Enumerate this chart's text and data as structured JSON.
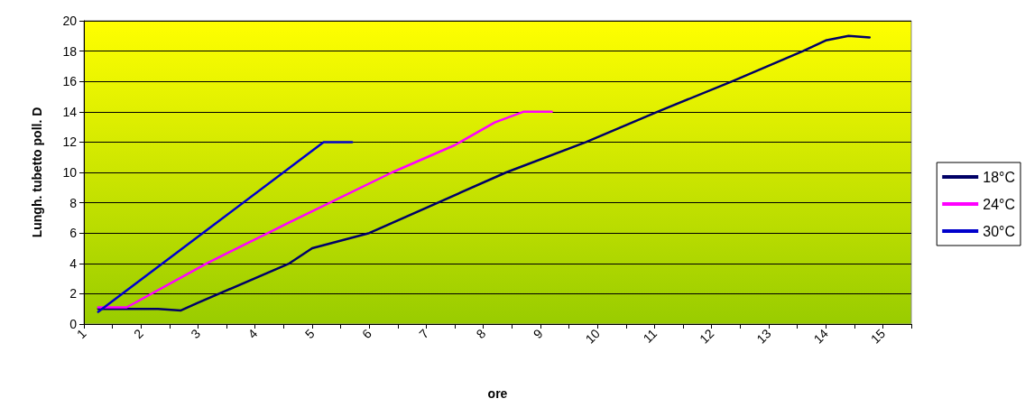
{
  "chart_data": {
    "type": "line",
    "xlabel": "ore",
    "ylabel": "Lungh. tubetto poll. D",
    "xlim": [
      1,
      15.5
    ],
    "xticks": [
      1,
      {
        "value": 1.5,
        "label": null
      },
      2,
      {
        "value": 2.5,
        "label": null
      },
      3,
      {
        "value": 3.5,
        "label": null
      },
      4,
      {
        "value": 4.5,
        "label": null
      },
      5,
      {
        "value": 5.5,
        "label": null
      },
      6,
      {
        "value": 6.5,
        "label": null
      },
      7,
      {
        "value": 7.5,
        "label": null
      },
      8,
      {
        "value": 8.5,
        "label": null
      },
      9,
      {
        "value": 9.5,
        "label": null
      },
      10,
      {
        "value": 10.5,
        "label": null
      },
      11,
      {
        "value": 11.5,
        "label": null
      },
      12,
      {
        "value": 12.5,
        "label": null
      },
      13,
      {
        "value": 13.5,
        "label": null
      },
      14,
      {
        "value": 14.5,
        "label": null
      },
      15,
      {
        "value": 15.5,
        "label": null
      }
    ],
    "ylim": [
      0,
      20
    ],
    "yticks": [
      0,
      2,
      4,
      6,
      8,
      10,
      12,
      14,
      16,
      18,
      20
    ],
    "grid": "y",
    "legend": "right",
    "marker": "none",
    "line_style": "solid",
    "series": [
      {
        "name": "18°C",
        "color": "#000066",
        "x": [
          1.25,
          2.3,
          2.7,
          3.0,
          4.6,
          5.0,
          6.0,
          8.4,
          9.8,
          11.05,
          12.36,
          13.6,
          14.0,
          14.4,
          14.77
        ],
        "values": [
          1.0,
          1.0,
          0.9,
          1.4,
          4,
          5,
          6,
          10,
          12,
          14,
          16,
          18,
          18.7,
          19.0,
          18.9
        ]
      },
      {
        "name": "24°C",
        "color": "#ff00ff",
        "x": [
          1.25,
          1.75,
          3.15,
          4.6,
          6.4,
          7.5,
          8.2,
          8.7,
          9.2
        ],
        "values": [
          1.1,
          1.1,
          4,
          6.7,
          10,
          11.8,
          13.3,
          14,
          14
        ]
      },
      {
        "name": "30°C",
        "color": "#0000cc",
        "x": [
          1.25,
          5.2,
          5.7
        ],
        "values": [
          0.8,
          12,
          12
        ]
      }
    ]
  }
}
